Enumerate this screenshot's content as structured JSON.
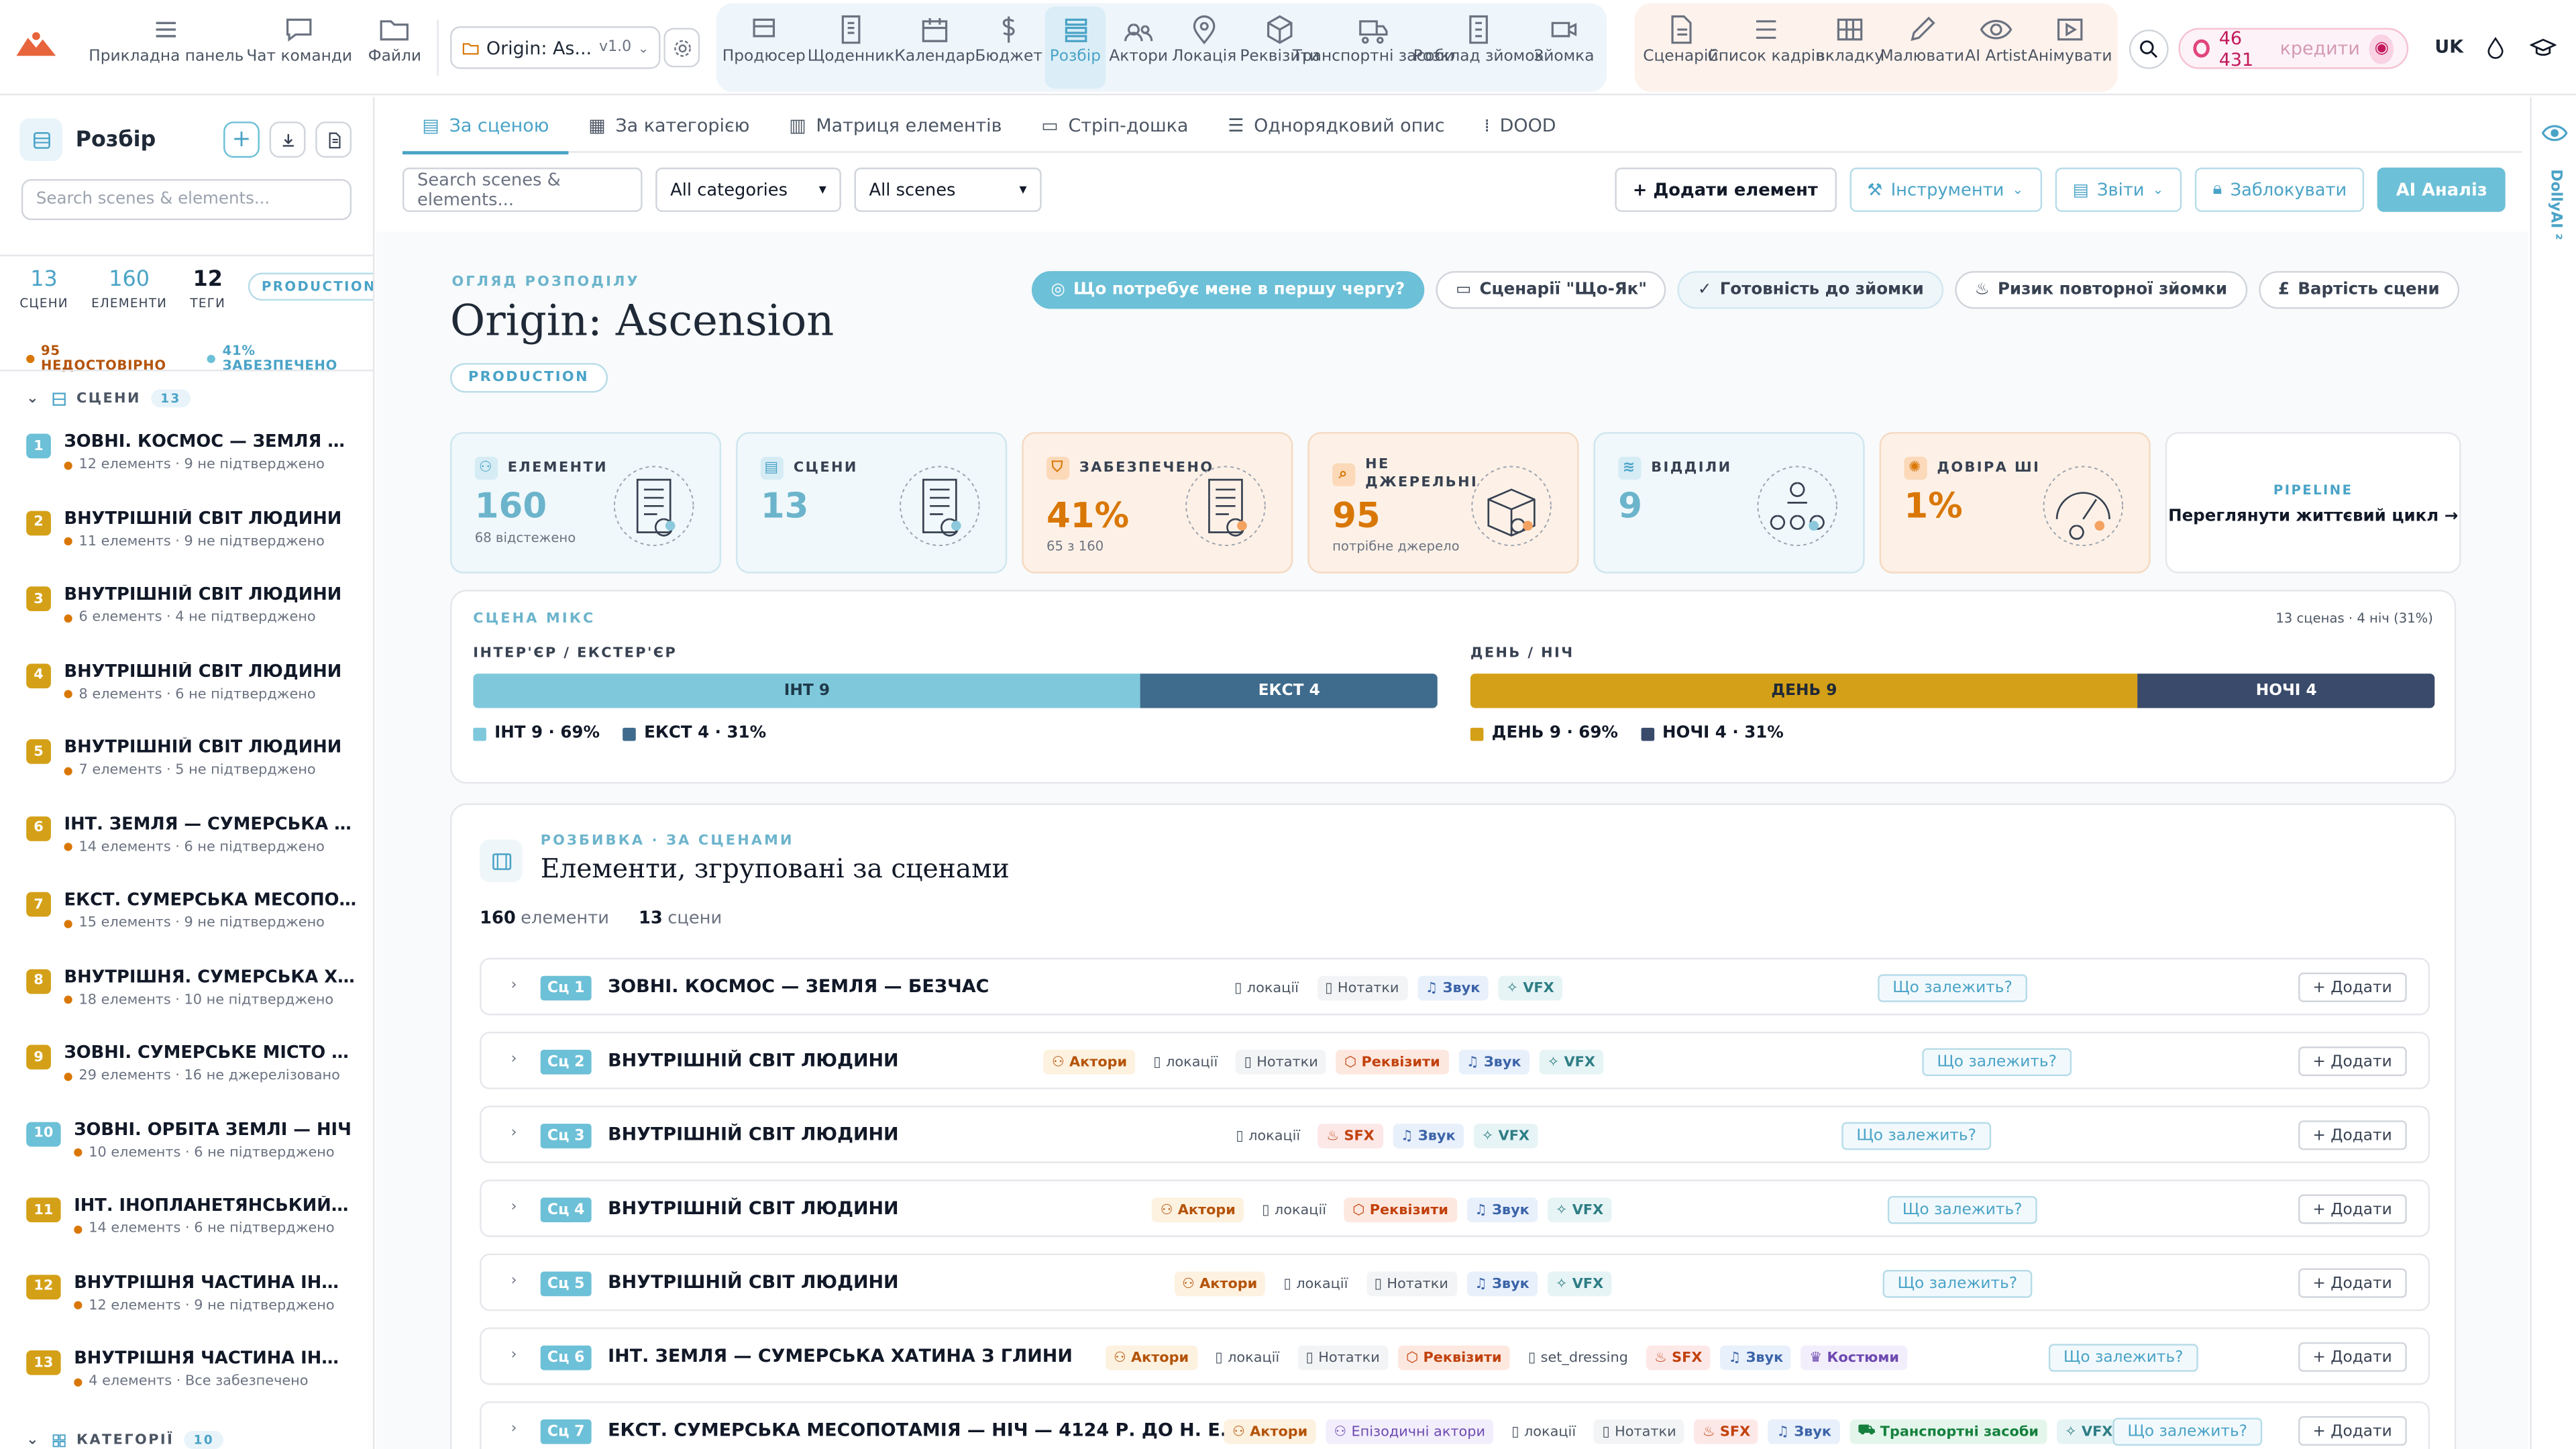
{
  "colors": {
    "accent": "#4aa3c7",
    "accent_soft": "#6cc0d7",
    "orange": "#d97706",
    "int": "#6cc0d7",
    "ext": "#3f6b8c",
    "day": "#d4a017",
    "night": "#3a4a6b"
  },
  "topnav": {
    "left": [
      {
        "label": "Прикладна панель",
        "icon": "dashboard-icon"
      },
      {
        "label": "Чат команди",
        "icon": "chat-icon"
      },
      {
        "label": "Файли",
        "icon": "folder-icon"
      }
    ],
    "project": {
      "name": "Origin: As...",
      "version": "v1.0"
    },
    "blue": [
      {
        "label": "Продюсер",
        "icon": "producer-icon"
      },
      {
        "label": "Щоденник",
        "icon": "diary-icon"
      },
      {
        "label": "Календар",
        "icon": "calendar-icon"
      },
      {
        "label": "Бюджет",
        "icon": "dollar-icon"
      },
      {
        "label": "Розбір",
        "icon": "breakdown-icon"
      },
      {
        "label": "Актори",
        "icon": "actors-icon"
      },
      {
        "label": "Локація",
        "icon": "location-icon"
      },
      {
        "label": "Реквізити",
        "icon": "props-icon"
      },
      {
        "label": "Транспортні засоби",
        "icon": "truck-icon"
      },
      {
        "label": "Розклад зйомок",
        "icon": "schedule-icon"
      },
      {
        "label": "Зйомка",
        "icon": "camera-icon"
      }
    ],
    "pink": [
      {
        "label": "Сценарій",
        "icon": "script-icon"
      },
      {
        "label": "Список кадрів",
        "icon": "shotlist-icon"
      },
      {
        "label": "вкладку",
        "icon": "storyboard-icon"
      },
      {
        "label": "Малювати",
        "icon": "pencil-icon"
      },
      {
        "label": "AI Artist",
        "icon": "eye-icon"
      },
      {
        "label": "Анімувати",
        "icon": "animate-icon"
      }
    ],
    "credits": {
      "amount": "46 431",
      "label": "кредити"
    },
    "lang": "UK"
  },
  "sidebar": {
    "title": "Розбір",
    "search_placeholder": "Search scenes & elements...",
    "stats": [
      {
        "value": "13",
        "label": "СЦЕНИ"
      },
      {
        "value": "160",
        "label": "ЕЛЕМЕНТИ"
      },
      {
        "value": "12",
        "label": "ТЕГИ"
      }
    ],
    "status": "PRODUCTION",
    "flags": [
      {
        "text": "95 НЕДОСТОВІРНО",
        "color": "#d97706"
      },
      {
        "text": "41% ЗАБЕЗПЕЧЕНО",
        "color": "#6cc0d7"
      }
    ],
    "scenes_section": "СЦЕНИ",
    "scenes_count": "13",
    "categories_section": "КАТЕГОРІЇ",
    "categories_count": "10",
    "scenes": [
      {
        "num": "1",
        "title": "ЗОВНІ. КОСМОС — ЗЕМЛЯ — Б...",
        "sub": "12 елементs · 9 не підтверджено",
        "color": "#6cc0d7"
      },
      {
        "num": "2",
        "title": "ВНУТРІШНІЙ СВІТ ЛЮДИНИ",
        "sub": "11 елементs · 9 не підтверджено",
        "color": "#d4a017"
      },
      {
        "num": "3",
        "title": "ВНУТРІШНІЙ СВІТ ЛЮДИНИ",
        "sub": "6 елементs · 4 не підтверджено",
        "color": "#d4a017"
      },
      {
        "num": "4",
        "title": "ВНУТРІШНІЙ СВІТ ЛЮДИНИ",
        "sub": "8 елементs · 6 не підтверджено",
        "color": "#d4a017"
      },
      {
        "num": "5",
        "title": "ВНУТРІШНІЙ СВІТ ЛЮДИНИ",
        "sub": "7 елементs · 5 не підтверджено",
        "color": "#d4a017"
      },
      {
        "num": "6",
        "title": "ІНТ. ЗЕМЛЯ — СУМЕРСЬКА ХАТ...",
        "sub": "14 елементs · 6 не підтверджено",
        "color": "#d4a017"
      },
      {
        "num": "7",
        "title": "ЕКСТ. СУМЕРСЬКА МЕСОПОТА...",
        "sub": "15 елементs · 9 не підтверджено",
        "color": "#d4a017"
      },
      {
        "num": "8",
        "title": "ВНУТРІШНЯ. СУМЕРСЬКА ХАТА...",
        "sub": "18 елементs · 10 не підтверджено",
        "color": "#d4a017"
      },
      {
        "num": "9",
        "title": "ЗОВНІ. СУМЕРСЬКЕ МІСТО — ...",
        "sub": "29 елементs · 16 не джерелізовано",
        "color": "#d4a017"
      },
      {
        "num": "10",
        "title": "ЗОВНІ. ОРБІТА ЗЕМЛІ — НІЧ",
        "sub": "10 елементs · 6 не підтверджено",
        "color": "#6cc0d7"
      },
      {
        "num": "11",
        "title": "ІНТ. ІНОПЛАНЕТЯНСЬКИЙ М...",
        "sub": "14 елементs · 6 не підтверджено",
        "color": "#d4a017"
      },
      {
        "num": "12",
        "title": "ВНУТРІШНЯ ЧАСТИНА ІНОПЛ...",
        "sub": "12 елементs · 9 не підтверджено",
        "color": "#d4a017"
      },
      {
        "num": "13",
        "title": "ВНУТРІШНЯ ЧАСТИНА ІНОПЛ...",
        "sub": "4 елементs · Все забезпечено",
        "color": "#d4a017"
      }
    ]
  },
  "tabs": [
    {
      "label": "За сценою",
      "active": true,
      "icon": "list-icon"
    },
    {
      "label": "За категорією",
      "icon": "grid-icon"
    },
    {
      "label": "Матриця елементів",
      "icon": "matrix-icon"
    },
    {
      "label": "Стріп-дошка",
      "icon": "strip-icon"
    },
    {
      "label": "Однорядковий опис",
      "icon": "lines-icon"
    },
    {
      "label": "DOOD",
      "icon": "dood-icon"
    }
  ],
  "filters": {
    "search_placeholder": "Search scenes & elements...",
    "category": "All categories",
    "scene": "All scenes"
  },
  "actions": {
    "add": "+ Додати елемент",
    "tools": "Інструменти",
    "reports": "Звіти",
    "lock": "Заблокувати",
    "ai": "AI Аналіз"
  },
  "overview": {
    "label": "ОГЛЯД РОЗПОДІЛУ",
    "title": "Origin: Ascension",
    "status": "PRODUCTION",
    "chips": [
      {
        "label": "Що потребує мене в першу чергу?",
        "style": "primary"
      },
      {
        "label": "Сценарії \"Що-Як\"",
        "style": ""
      },
      {
        "label": "Готовність до зйомки",
        "style": "soft"
      },
      {
        "label": "Ризик повторної зйомки",
        "style": ""
      },
      {
        "label": "Вартість сцени",
        "style": ""
      }
    ],
    "cards": [
      {
        "label": "ЕЛЕМЕНТИ",
        "value": "160",
        "sub": "68 відстежено",
        "style": "blue",
        "icon": "elements-icon"
      },
      {
        "label": "СЦЕНИ",
        "value": "13",
        "sub": "",
        "style": "blue",
        "icon": "scenes-icon"
      },
      {
        "label": "ЗАБЕЗПЕЧЕНО",
        "value": "41%",
        "sub": "65 з 160",
        "style": "orange",
        "icon": "shield-icon"
      },
      {
        "label": "НЕ ДЖЕРЕЛЬНІ",
        "value": "95",
        "sub": "потрібне джерело",
        "style": "orange",
        "icon": "search-icon"
      },
      {
        "label": "ВІДДІЛИ",
        "value": "9",
        "sub": "",
        "style": "blue",
        "icon": "layers-icon"
      },
      {
        "label": "ДОВІРА ШІ",
        "value": "1%",
        "sub": "",
        "style": "orange",
        "icon": "sparkle-icon"
      }
    ],
    "pipeline": {
      "label": "PIPELINE",
      "text": "Переглянути життєвий цикл →"
    }
  },
  "mix": {
    "title": "СЦЕНА МІКС",
    "meta": "13 сценаs · 4 ніч (31%)",
    "ie_label": "ІНТЕР'ЄР / ЕКСТЕР'ЄР",
    "dn_label": "ДЕНЬ / НІЧ",
    "int": {
      "bar": "ІНТ 9",
      "legend": "ІНТ 9 · 69%",
      "value": 9
    },
    "ext": {
      "bar": "ЕКСТ 4",
      "legend": "ЕКСТ 4 · 31%",
      "value": 4
    },
    "day": {
      "bar": "ДЕНЬ 9",
      "legend": "ДЕНЬ 9 · 69%",
      "value": 9
    },
    "night": {
      "bar": "НОЧІ 4",
      "legend": "НОЧІ 4 · 31%",
      "value": 4
    }
  },
  "breakdown": {
    "label": "РОЗБИВКА · ЗА СЦЕНАМИ",
    "title": "Елементи, згруповані за сценами",
    "elements_count": "160",
    "elements_word": "елементи",
    "scenes_count": "13",
    "scenes_word": "сцени",
    "dep_label": "Що залежить?",
    "add_label": "+ Додати",
    "rows": [
      {
        "sc": "Сц 1",
        "title": "ЗОВНІ. КОСМОС — ЗЕМЛЯ — БЕЗЧАС",
        "tags": [
          [
            "loc",
            "локації"
          ],
          [
            "note",
            "Нотатки"
          ],
          [
            "snd",
            "Звук"
          ],
          [
            "vfx",
            "VFX"
          ]
        ]
      },
      {
        "sc": "Сц 2",
        "title": "ВНУТРІШНІЙ СВІТ ЛЮДИНИ",
        "tags": [
          [
            "act",
            "Актори"
          ],
          [
            "loc",
            "локації"
          ],
          [
            "note",
            "Нотатки"
          ],
          [
            "prop",
            "Реквізити"
          ],
          [
            "snd",
            "Звук"
          ],
          [
            "vfx",
            "VFX"
          ]
        ]
      },
      {
        "sc": "Сц 3",
        "title": "ВНУТРІШНІЙ СВІТ ЛЮДИНИ",
        "tags": [
          [
            "loc",
            "локації"
          ],
          [
            "sfx",
            "SFX"
          ],
          [
            "snd",
            "Звук"
          ],
          [
            "vfx",
            "VFX"
          ]
        ]
      },
      {
        "sc": "Сц 4",
        "title": "ВНУТРІШНІЙ СВІТ ЛЮДИНИ",
        "tags": [
          [
            "act",
            "Актори"
          ],
          [
            "loc",
            "локації"
          ],
          [
            "prop",
            "Реквізити"
          ],
          [
            "snd",
            "Звук"
          ],
          [
            "vfx",
            "VFX"
          ]
        ]
      },
      {
        "sc": "Сц 5",
        "title": "ВНУТРІШНІЙ СВІТ ЛЮДИНИ",
        "tags": [
          [
            "act",
            "Актори"
          ],
          [
            "loc",
            "локації"
          ],
          [
            "note",
            "Нотатки"
          ],
          [
            "snd",
            "Звук"
          ],
          [
            "vfx",
            "VFX"
          ]
        ]
      },
      {
        "sc": "Сц 6",
        "title": "ІНТ. ЗЕМЛЯ — СУМЕРСЬКА ХАТИНА З ГЛИНИ",
        "tags": [
          [
            "act",
            "Актори"
          ],
          [
            "loc",
            "локації"
          ],
          [
            "note",
            "Нотатки"
          ],
          [
            "prop",
            "Реквізити"
          ],
          [
            "set",
            "set_dressing"
          ],
          [
            "sfx",
            "SFX"
          ],
          [
            "snd",
            "Звук"
          ],
          [
            "cost",
            "Костюми"
          ]
        ]
      },
      {
        "sc": "Сц 7",
        "title": "ЕКСТ. СУМЕРСЬКА МЕСОПОТАМІЯ — НІЧ — 4124 Р. ДО Н. Е.",
        "tags": [
          [
            "act",
            "Актори"
          ],
          [
            "epi",
            "Епізодичні актори"
          ],
          [
            "loc",
            "локації"
          ],
          [
            "note",
            "Нотатки"
          ],
          [
            "sfx",
            "SFX"
          ],
          [
            "snd",
            "Звук"
          ],
          [
            "trn",
            "Транспортні засоби"
          ],
          [
            "vfx",
            "VFX"
          ]
        ]
      }
    ]
  },
  "rail": {
    "label": "DollyAI ²"
  }
}
